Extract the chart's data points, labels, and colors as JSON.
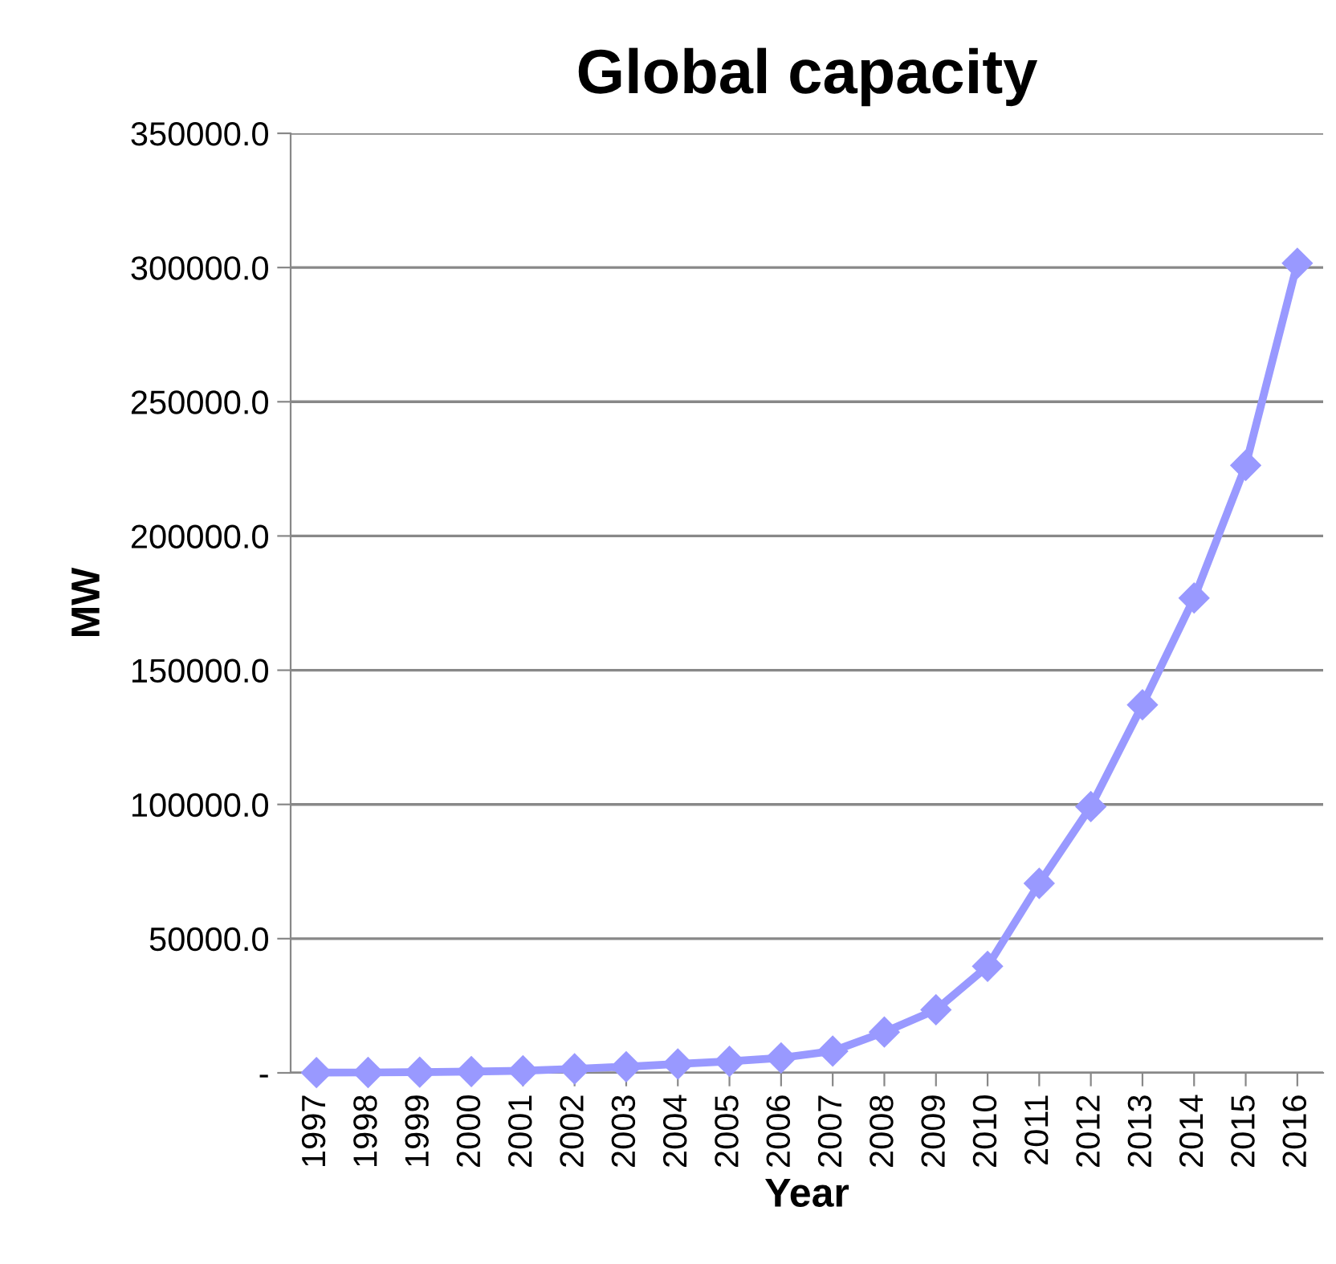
{
  "chart_data": {
    "type": "line",
    "title": "Global capacity",
    "xlabel": "Year",
    "ylabel": "MW",
    "categories": [
      "1997",
      "1998",
      "1999",
      "2000",
      "2001",
      "2002",
      "2003",
      "2004",
      "2005",
      "2006",
      "2007",
      "2008",
      "2009",
      "2010",
      "2011",
      "2012",
      "2013",
      "2014",
      "2015",
      "2016"
    ],
    "series": [
      {
        "color": "#9999ff",
        "values": [
          100,
          150,
          250,
          500,
          760,
          1500,
          2300,
          3300,
          4300,
          5600,
          8100,
          15200,
          23500,
          39700,
          70600,
          99200,
          137100,
          176900,
          226300,
          301600
        ]
      }
    ],
    "ylim": [
      0,
      350000
    ],
    "yticks": [
      {
        "value": 0,
        "label": "-"
      },
      {
        "value": 50000,
        "label": "50000.0"
      },
      {
        "value": 100000,
        "label": "100000.0"
      },
      {
        "value": 150000,
        "label": "150000.0"
      },
      {
        "value": 200000,
        "label": "200000.0"
      },
      {
        "value": 250000,
        "label": "250000.0"
      },
      {
        "value": 300000,
        "label": "300000.0"
      },
      {
        "value": 350000,
        "label": "350000.0"
      }
    ],
    "grid": "y",
    "marker": "diamond",
    "line_style": "solid",
    "legend": false
  }
}
